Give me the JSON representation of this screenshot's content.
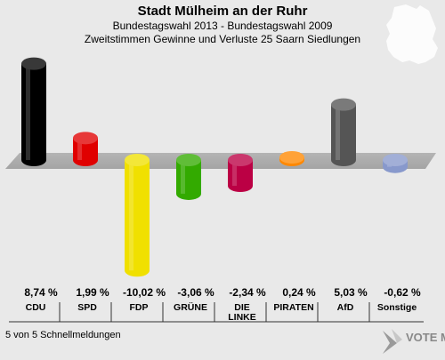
{
  "chart_data": {
    "type": "bar",
    "title": "Stadt Mülheim an der Ruhr",
    "subtitle_lines": [
      "Bundestagswahl 2013 - Bundestagswahl 2009",
      "Zweitstimmen Gewinne und Verluste 25 Saarn Siedlungen"
    ],
    "categories": [
      "CDU",
      "SPD",
      "FDP",
      "GRÜNE",
      "DIE LINKE",
      "PIRATEN",
      "AfD",
      "Sonstige"
    ],
    "category_lines": [
      [
        "CDU"
      ],
      [
        "SPD"
      ],
      [
        "FDP"
      ],
      [
        "GRÜNE"
      ],
      [
        "DIE",
        "LINKE"
      ],
      [
        "PIRATEN"
      ],
      [
        "AfD"
      ],
      [
        "Sonstige"
      ]
    ],
    "values": [
      8.74,
      1.99,
      -10.02,
      -3.06,
      -2.34,
      0.24,
      5.03,
      -0.62
    ],
    "value_labels": [
      "8,74 %",
      "1,99 %",
      "-10,02 %",
      "-3,06 %",
      "-2,34 %",
      "0,24 %",
      "5,03 %",
      "-0,62 %"
    ],
    "colors": [
      "#000000",
      "#e00000",
      "#f0e000",
      "#33aa00",
      "#bb0044",
      "#ff8800",
      "#555555",
      "#8899cc"
    ],
    "xlabel": "",
    "ylabel": "",
    "grid": false
  },
  "footer": {
    "status": "5 von 5 Schnellmeldungen",
    "logo_text": "VOTE MANAGER"
  }
}
